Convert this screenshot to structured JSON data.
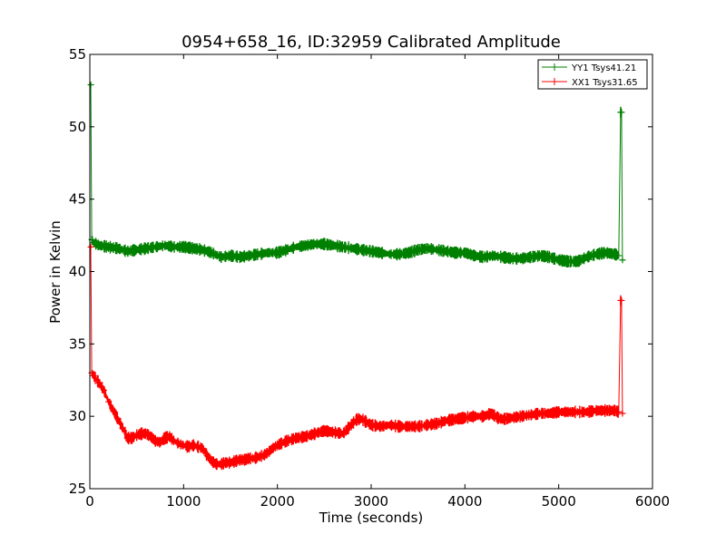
{
  "chart_data": {
    "type": "line",
    "title": "0954+658_16, ID:32959 Calibrated Amplitude",
    "xlabel": "Time (seconds)",
    "ylabel": "Power in Kelvin",
    "xlim": [
      0,
      6000
    ],
    "ylim": [
      25,
      55
    ],
    "xticks": [
      0,
      1000,
      2000,
      3000,
      4000,
      5000,
      6000
    ],
    "yticks": [
      25,
      30,
      35,
      40,
      45,
      50,
      55
    ],
    "grid": false,
    "legend_position": "top-right",
    "marker": "+",
    "series": [
      {
        "name": "YY1 Tsys41.21",
        "color": "#008000",
        "x": [
          10,
          20,
          40,
          100,
          200,
          300,
          400,
          500,
          600,
          700,
          800,
          900,
          1000,
          1100,
          1200,
          1300,
          1400,
          1500,
          1600,
          1700,
          1800,
          1900,
          2000,
          2100,
          2200,
          2300,
          2400,
          2500,
          2600,
          2700,
          2800,
          2900,
          3000,
          3100,
          3200,
          3300,
          3400,
          3500,
          3600,
          3700,
          3800,
          3900,
          4000,
          4100,
          4200,
          4300,
          4400,
          4500,
          4600,
          4700,
          4800,
          4900,
          5000,
          5100,
          5200,
          5300,
          5400,
          5500,
          5600,
          5640,
          5660,
          5670,
          5680
        ],
        "y": [
          52.9,
          42.2,
          42.0,
          41.8,
          41.7,
          41.6,
          41.4,
          41.5,
          41.6,
          41.7,
          41.8,
          41.7,
          41.7,
          41.6,
          41.5,
          41.3,
          41.0,
          41.1,
          41.0,
          41.1,
          41.2,
          41.3,
          41.3,
          41.5,
          41.7,
          41.8,
          41.9,
          41.9,
          41.8,
          41.7,
          41.6,
          41.5,
          41.4,
          41.3,
          41.2,
          41.2,
          41.3,
          41.5,
          41.6,
          41.5,
          41.4,
          41.3,
          41.3,
          41.1,
          41.0,
          41.1,
          41.0,
          40.9,
          40.9,
          41.0,
          41.1,
          41.0,
          40.8,
          40.7,
          40.7,
          41.0,
          41.2,
          41.3,
          41.2,
          41.1,
          51.0,
          51.0,
          40.8
        ]
      },
      {
        "name": "XX1 Tsys31.65",
        "color": "#ff0000",
        "x": [
          10,
          20,
          40,
          100,
          150,
          200,
          250,
          300,
          350,
          400,
          450,
          500,
          550,
          600,
          650,
          700,
          750,
          800,
          850,
          900,
          950,
          1000,
          1050,
          1100,
          1150,
          1200,
          1250,
          1300,
          1350,
          1400,
          1450,
          1500,
          1550,
          1600,
          1650,
          1700,
          1750,
          1800,
          1850,
          1900,
          1950,
          2000,
          2100,
          2200,
          2300,
          2400,
          2500,
          2600,
          2700,
          2800,
          2850,
          2900,
          2950,
          3000,
          3100,
          3200,
          3300,
          3400,
          3500,
          3600,
          3700,
          3800,
          3900,
          4000,
          4100,
          4200,
          4280,
          4350,
          4400,
          4500,
          4600,
          4700,
          4800,
          4900,
          5000,
          5100,
          5200,
          5300,
          5400,
          5500,
          5600,
          5640,
          5660,
          5670,
          5680
        ],
        "y": [
          41.7,
          33.0,
          32.8,
          32.3,
          31.8,
          31.0,
          30.4,
          29.8,
          29.2,
          28.5,
          28.5,
          28.7,
          28.8,
          28.8,
          28.6,
          28.3,
          28.2,
          28.5,
          28.6,
          28.3,
          28.1,
          28.0,
          27.9,
          28.0,
          27.9,
          27.8,
          27.3,
          26.9,
          26.7,
          26.7,
          26.8,
          26.8,
          26.9,
          27.0,
          27.0,
          27.1,
          27.1,
          27.2,
          27.3,
          27.5,
          27.8,
          28.0,
          28.3,
          28.5,
          28.6,
          28.8,
          29.0,
          28.9,
          28.8,
          29.5,
          29.8,
          29.8,
          29.6,
          29.4,
          29.3,
          29.4,
          29.3,
          29.3,
          29.3,
          29.4,
          29.5,
          29.7,
          29.8,
          29.9,
          30.0,
          30.0,
          30.2,
          29.9,
          29.8,
          29.9,
          30.0,
          30.1,
          30.2,
          30.2,
          30.3,
          30.3,
          30.3,
          30.3,
          30.4,
          30.4,
          30.4,
          30.3,
          38.0,
          38.0,
          30.2
        ]
      }
    ]
  }
}
